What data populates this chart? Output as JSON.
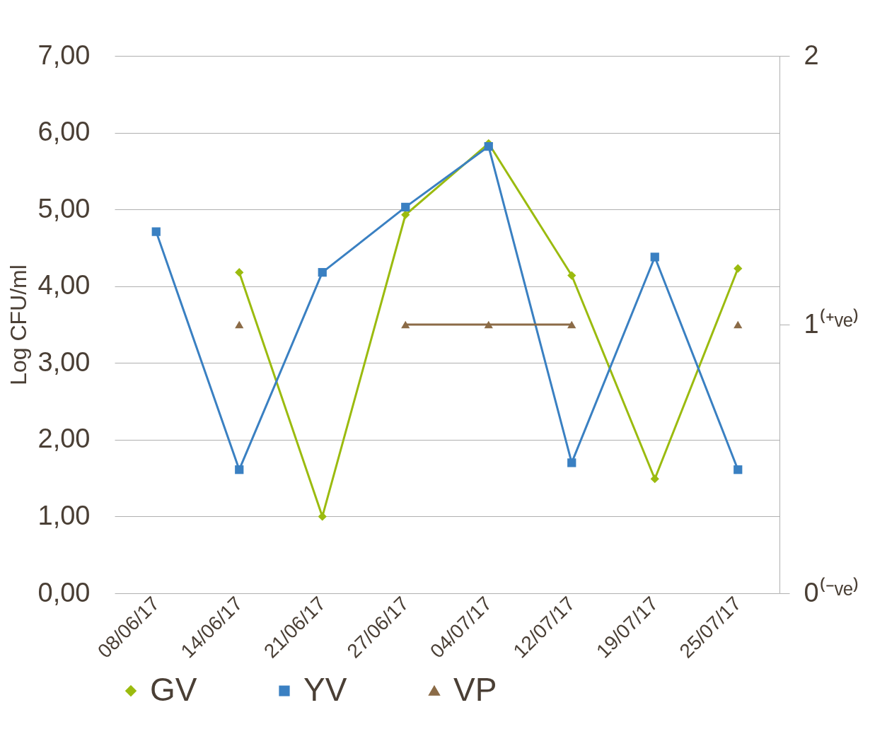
{
  "chart_data": {
    "type": "line",
    "ylabel": "Log CFU/ml",
    "categories": [
      "08/06/17",
      "14/06/17",
      "21/06/17",
      "27/06/17",
      "04/07/17",
      "12/07/17",
      "19/07/17",
      "25/07/17"
    ],
    "series": [
      {
        "name": "GV",
        "color": "#9bbb0f",
        "marker": "diamond",
        "values": [
          null,
          4.18,
          1.0,
          4.93,
          5.86,
          4.14,
          1.49,
          4.23
        ]
      },
      {
        "name": "YV",
        "color": "#3a80c2",
        "marker": "square",
        "values": [
          4.71,
          1.61,
          4.18,
          5.03,
          5.82,
          1.7,
          4.38,
          1.61
        ]
      },
      {
        "name": "VP",
        "color": "#8b6b47",
        "marker": "triangle",
        "axis": "y2",
        "values": [
          null,
          1,
          null,
          1,
          1,
          1,
          null,
          1
        ]
      }
    ],
    "ylim": [
      0,
      7
    ],
    "yticks": [
      {
        "value": 0,
        "label": "0,00"
      },
      {
        "value": 1,
        "label": "1,00"
      },
      {
        "value": 2,
        "label": "2,00"
      },
      {
        "value": 3,
        "label": "3,00"
      },
      {
        "value": 4,
        "label": "4,00"
      },
      {
        "value": 5,
        "label": "5,00"
      },
      {
        "value": 6,
        "label": "6,00"
      },
      {
        "value": 7,
        "label": "7,00"
      }
    ],
    "y2lim": [
      0,
      2
    ],
    "y2ticks": [
      {
        "value": 0,
        "label": "0⁽⁻ᵛᵉ⁾"
      },
      {
        "value": 1,
        "label": "1⁽⁺ᵛᵉ⁾"
      },
      2
    ],
    "grid": "y",
    "legend": "bottom"
  }
}
